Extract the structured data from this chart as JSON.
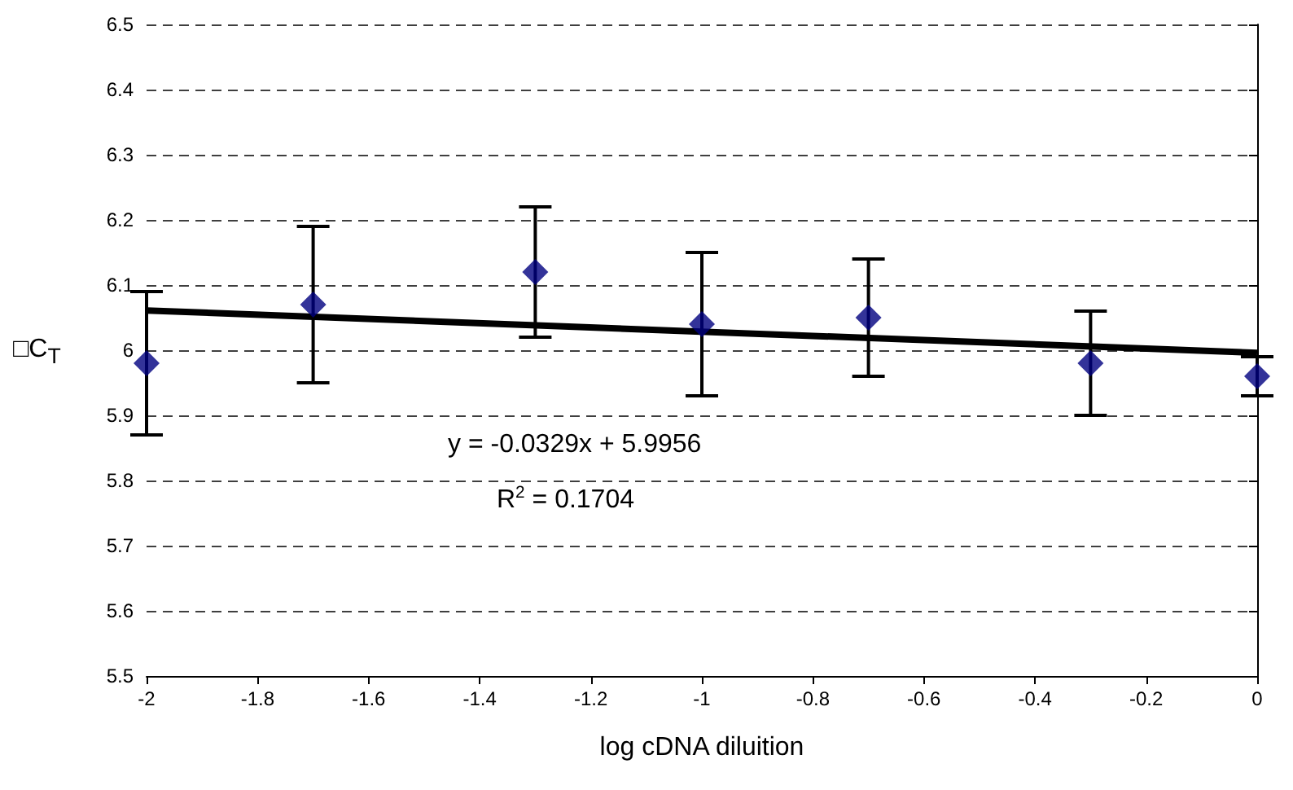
{
  "chart_data": {
    "type": "scatter",
    "xlabel": "log cDNA diluition",
    "ylabel": "□C$_{T}$",
    "grid": "y",
    "xlim": [
      -2,
      0
    ],
    "xticks": [
      -2,
      -1.8,
      -1.6,
      -1.4,
      -1.2,
      -1,
      -0.8,
      -0.6,
      -0.4,
      -0.2,
      0
    ],
    "ylim": [
      5.5,
      6.5
    ],
    "yticks": [
      5.5,
      5.6,
      5.7,
      5.8,
      5.9,
      6,
      6.1,
      6.2,
      6.3,
      6.4,
      6.5
    ],
    "series": [
      {
        "color": "#000080",
        "x": [
          -2,
          -1.7,
          -1.3,
          -1,
          -0.7,
          -0.3,
          0
        ],
        "values": [
          5.98,
          6.07,
          6.12,
          6.04,
          6.05,
          5.98,
          5.96
        ],
        "marker": "diamond",
        "errors": [
          [
            5.87,
            6.09
          ],
          [
            5.95,
            6.19
          ],
          [
            6.02,
            6.22
          ],
          [
            5.93,
            6.15
          ],
          [
            5.96,
            6.14
          ],
          [
            5.9,
            6.06
          ],
          [
            5.93,
            5.99
          ]
        ]
      },
      {
        "type": "line",
        "color": "#000000",
        "line_style": "solid",
        "marker": "none",
        "x": [
          -2,
          0
        ],
        "values": [
          6.061,
          5.996
        ]
      }
    ],
    "annotations": [
      "y = -0.0329x + 5.9956",
      "R$^{2}$ = 0.1704"
    ]
  }
}
